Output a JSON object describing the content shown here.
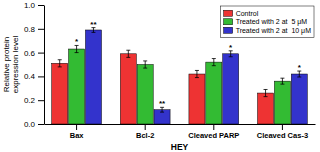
{
  "chart_data": {
    "type": "bar",
    "xlabel": "HEY",
    "ylabel": "Relative protein\nexpression level",
    "categories": [
      "Bax",
      "Bcl-2",
      "Cleaved PARP",
      "Cleaved Cas-3"
    ],
    "series": [
      {
        "name": "Control",
        "color": "#EE3333",
        "values": [
          0.51,
          0.59,
          0.42,
          0.26
        ],
        "errors": [
          0.03,
          0.03,
          0.03,
          0.03
        ]
      },
      {
        "name": "Treated with 2 at  5 μM",
        "color": "#33BB33",
        "values": [
          0.63,
          0.5,
          0.52,
          0.36
        ],
        "errors": [
          0.03,
          0.03,
          0.03,
          0.025
        ],
        "annotations": [
          "*",
          null,
          null,
          null
        ]
      },
      {
        "name": "Treated with 2 at  10 μM",
        "color": "#3333CC",
        "values": [
          0.79,
          0.12,
          0.59,
          0.42
        ],
        "errors": [
          0.02,
          0.02,
          0.025,
          0.025
        ],
        "annotations": [
          "**",
          "**",
          "*",
          "*"
        ]
      }
    ],
    "ylim": [
      0.0,
      1.0
    ],
    "yticks": [
      {
        "value": 0.0,
        "label": "0.0"
      },
      {
        "value": 0.2,
        "label": "0.2"
      },
      {
        "value": 0.4,
        "label": "0.4"
      },
      {
        "value": 0.6,
        "label": "0.6"
      },
      {
        "value": 0.8,
        "label": "0.8"
      },
      {
        "value": 1.0,
        "label": "1.0"
      }
    ],
    "legend": "upper right"
  }
}
